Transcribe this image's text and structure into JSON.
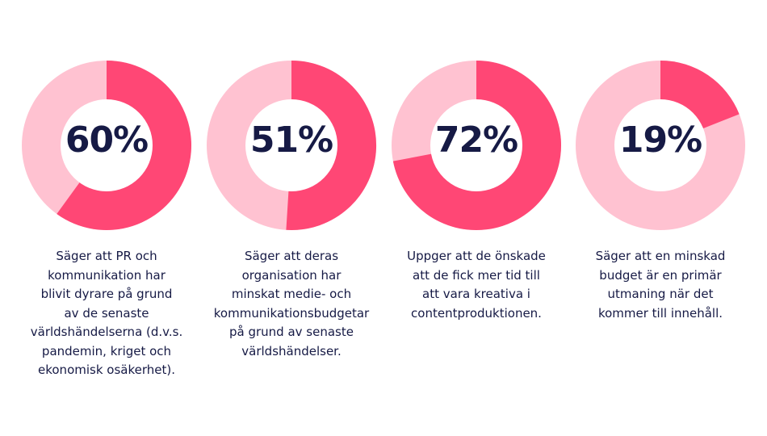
{
  "colors": {
    "filled": "#ff4775",
    "remainder": "#ffc2d1",
    "hole": "#ffffff",
    "text": "#161a45"
  },
  "chart_data": [
    {
      "type": "pie",
      "value": 60,
      "label": "60%",
      "description_lines": [
        "Säger att PR och",
        "kommunikation har",
        "blivit dyrare på grund",
        "av de senaste",
        "världshändelserna (d.v.s.",
        "pandemin, kriget och",
        "ekonomisk osäkerhet)."
      ]
    },
    {
      "type": "pie",
      "value": 51,
      "label": "51%",
      "description_lines": [
        "Säger att deras",
        "organisation har",
        "minskat medie- och",
        "kommunikationsbudgetar",
        "på grund av senaste",
        "världshändelser."
      ]
    },
    {
      "type": "pie",
      "value": 72,
      "label": "72%",
      "description_lines": [
        "Uppger att de önskade",
        "att de fick mer tid till",
        "att vara kreativa i",
        "contentproduktionen."
      ]
    },
    {
      "type": "pie",
      "value": 19,
      "label": "19%",
      "description_lines": [
        "Säger att en minskad",
        "budget är en primär",
        "utmaning när det",
        "kommer till innehåll."
      ]
    }
  ]
}
